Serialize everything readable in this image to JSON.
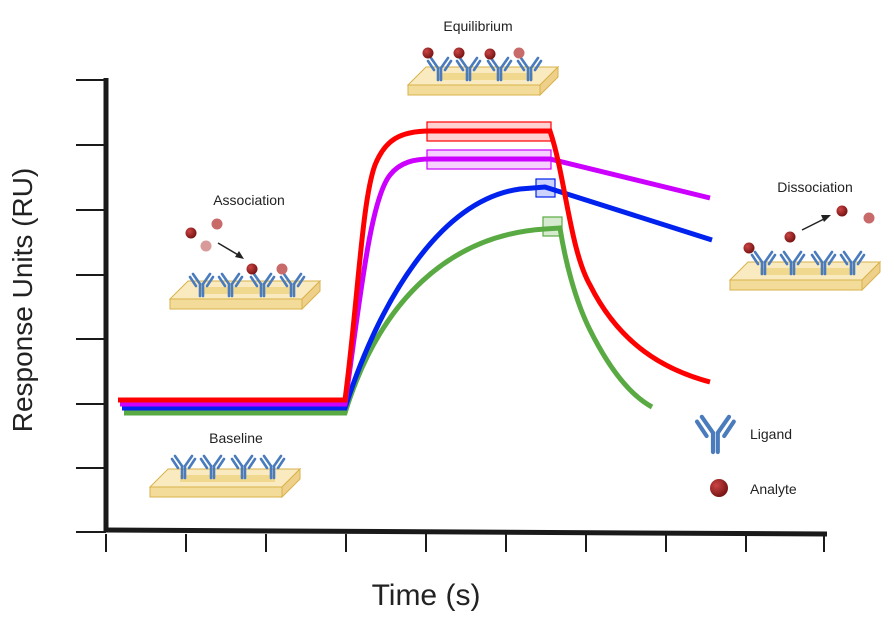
{
  "axes": {
    "y_label": "Response Units (RU)",
    "x_label": "Time (s)"
  },
  "phases": {
    "baseline": "Baseline",
    "association": "Association",
    "equilibrium": "Equilibrium",
    "dissociation": "Dissociation"
  },
  "legend": {
    "ligand": "Ligand",
    "analyte": "Analyte"
  },
  "colors": {
    "curve_1": "#ff0000",
    "curve_2": "#cc00ff",
    "curve_3": "#0022ee",
    "curve_4": "#5aaa44",
    "ligand": "#4a7bbd",
    "analyte": "#8b1a1a",
    "slide": "#f7e6b0"
  }
}
